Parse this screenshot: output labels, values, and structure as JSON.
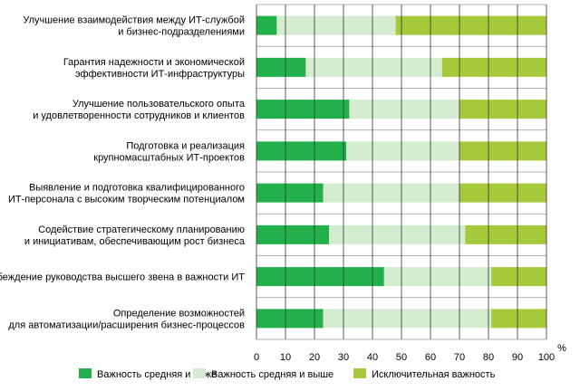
{
  "chart_data": {
    "type": "bar",
    "stacked": true,
    "orientation": "horizontal",
    "categories": [
      [
        "Улучшение взаимодействия между ИТ-службой",
        "и бизнес-подразделениями"
      ],
      [
        "Гарантия надежности и экономической",
        "эффективности ИТ-инфраструктуры"
      ],
      [
        "Улучшение пользовательского опыта",
        "и удовлетворенности сотрудников и клиентов"
      ],
      [
        "Подготовка и реализация",
        "крупномасштабных ИТ-проектов"
      ],
      [
        "Выявление и подготовка квалифицированного",
        "ИТ-персонала с высоким творческим потенциалом"
      ],
      [
        "Содействие стратегическому планированию",
        "и инициативам, обеспечивающим рост бизнеса"
      ],
      [
        "Убеждение руководства высшего звена в важности ИТ"
      ],
      [
        "Определение возможностей",
        "для автоматизации/расширения бизнес-процессов"
      ]
    ],
    "series": [
      {
        "name": "Важность средняя и ниже",
        "color": "#22b04b",
        "values": [
          7,
          17,
          32,
          31,
          23,
          25,
          44,
          23
        ]
      },
      {
        "name": "Важность средняя и выше",
        "color": "#d3ecd0",
        "values": [
          41,
          47,
          38,
          39,
          47,
          47,
          37,
          58
        ]
      },
      {
        "name": "Исключительная важность",
        "color": "#a5c93a",
        "values": [
          52,
          36,
          30,
          30,
          30,
          28,
          19,
          19
        ]
      }
    ],
    "x_ticks": [
      "0",
      "10",
      "20",
      "30",
      "40",
      "50",
      "60",
      "70",
      "80",
      "90",
      "100"
    ],
    "xlim": [
      0,
      100
    ],
    "x_unit": "%",
    "grid": true,
    "legend_position": "bottom"
  }
}
